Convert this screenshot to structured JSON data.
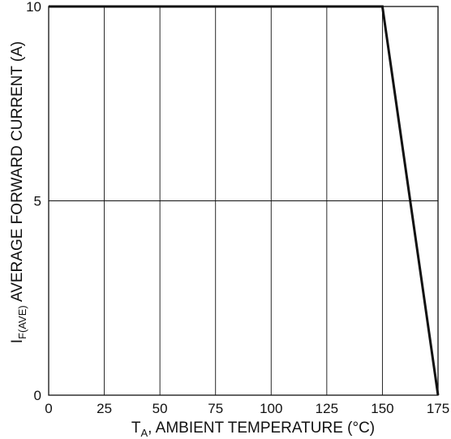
{
  "chart_data": {
    "type": "line",
    "xlabel_main": "T",
    "xlabel_sub": "A",
    "xlabel_rest": ", AMBIENT TEMPERATURE (°C)",
    "ylabel_main": "I",
    "ylabel_sub": "F(AVE)",
    "ylabel_rest": " AVERAGE FORWARD CURRENT (A)",
    "xlim": [
      0,
      175
    ],
    "ylim": [
      0,
      10
    ],
    "x_ticks": [
      "0",
      "25",
      "50",
      "75",
      "100",
      "125",
      "150",
      "175"
    ],
    "y_ticks": [
      "0",
      "5",
      "10"
    ],
    "x_tick_values": [
      0,
      25,
      50,
      75,
      100,
      125,
      150,
      175
    ],
    "y_tick_values": [
      0,
      5,
      10
    ],
    "grid": true,
    "series": [
      {
        "x": [
          0,
          150,
          175
        ],
        "y": [
          10,
          10,
          0
        ]
      }
    ],
    "colors": {
      "line": "#111111",
      "grid": "#111111",
      "frame": "#111111"
    }
  }
}
